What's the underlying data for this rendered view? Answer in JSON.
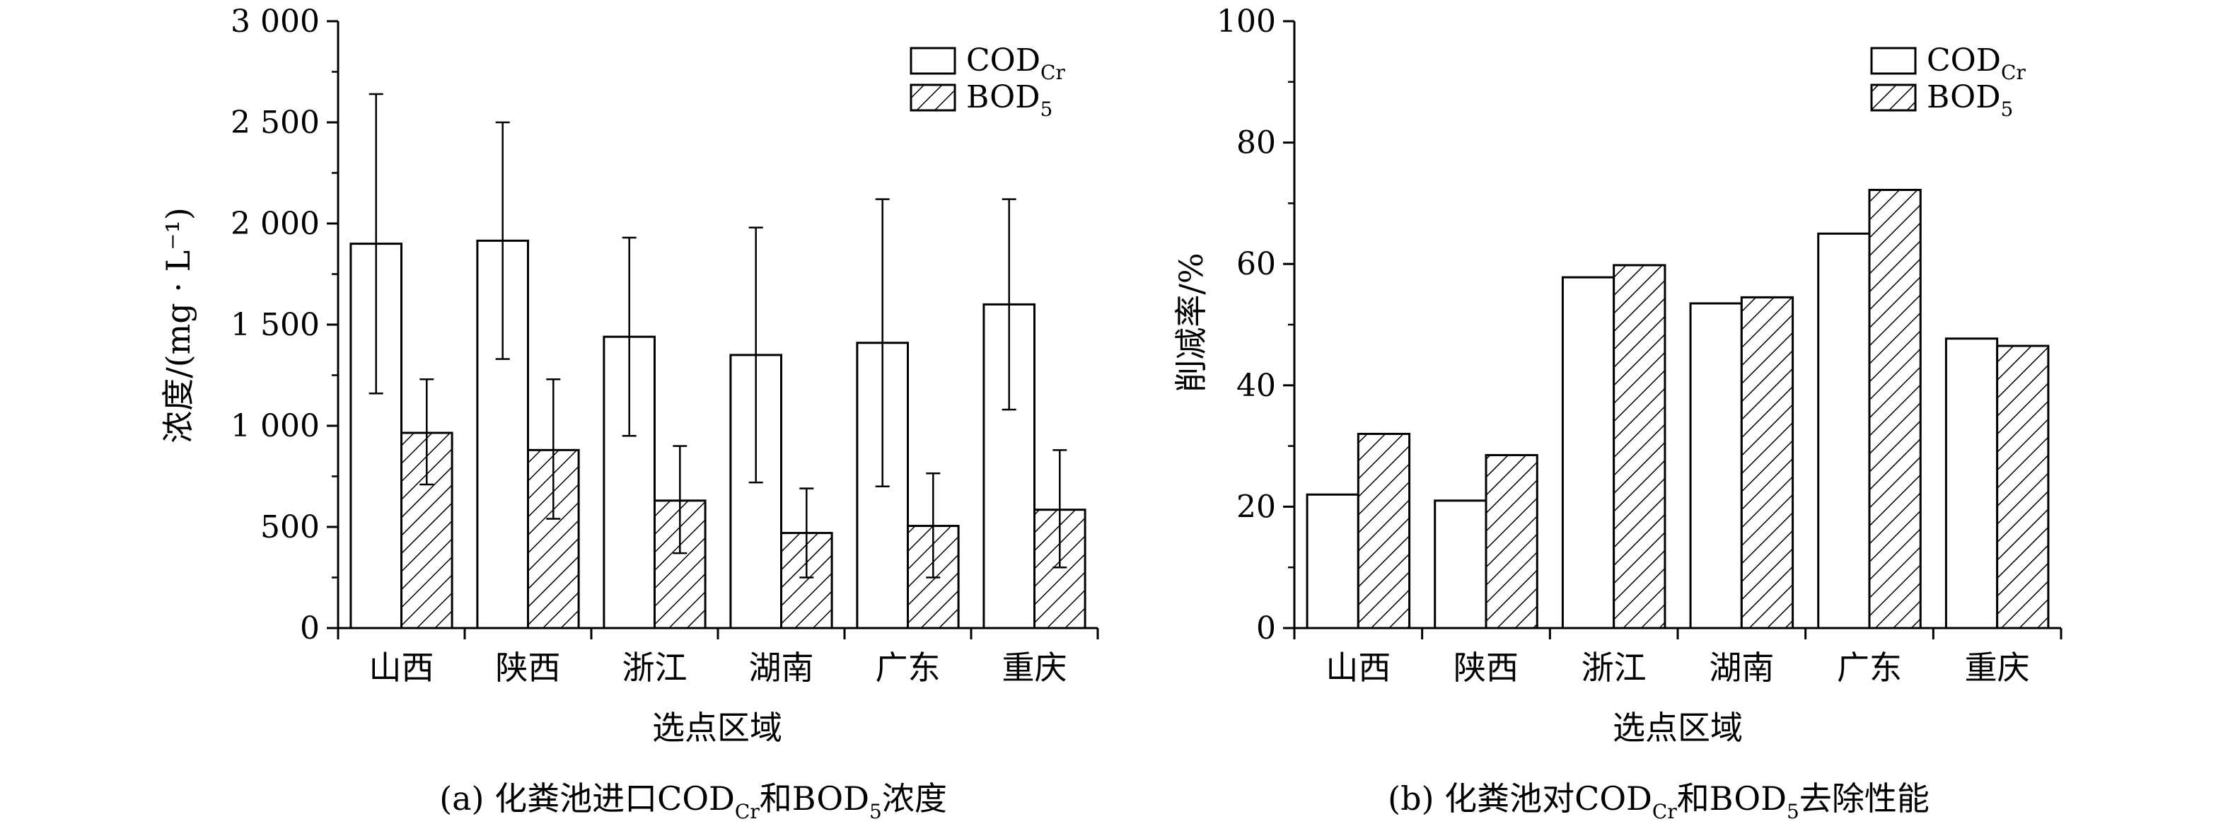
{
  "colors": {
    "ink": "#000000",
    "bar_fill_cod": "#ffffff",
    "hatch": "#000000"
  },
  "chart_data": [
    {
      "type": "bar",
      "panel": "a",
      "categories": [
        "山西",
        "陕西",
        "浙江",
        "湖南",
        "广东",
        "重庆"
      ],
      "xlabel": "选点区域",
      "ylabel": "浓度/(mg · L⁻¹)",
      "ylim": [
        0,
        3000
      ],
      "yticks": [
        0,
        500,
        1000,
        1500,
        2000,
        2500,
        3000
      ],
      "ytick_labels": [
        "0",
        "500",
        "1 000",
        "1 500",
        "2 000",
        "2 500",
        "3 000"
      ],
      "legend_position": "top-right",
      "series": [
        {
          "name": "COD",
          "name_sub": "Cr",
          "pattern": "solid",
          "values": [
            1900,
            1915,
            1440,
            1350,
            1410,
            1600
          ],
          "error": [
            [
              1160,
              2640
            ],
            [
              1330,
              2500
            ],
            [
              950,
              1930
            ],
            [
              720,
              1980
            ],
            [
              700,
              2120
            ],
            [
              1080,
              2120
            ]
          ]
        },
        {
          "name": "BOD",
          "name_sub": "5",
          "pattern": "hatch",
          "values": [
            965,
            880,
            630,
            470,
            505,
            585
          ],
          "error": [
            [
              710,
              1230
            ],
            [
              540,
              1230
            ],
            [
              370,
              900
            ],
            [
              250,
              690
            ],
            [
              250,
              765
            ],
            [
              300,
              880
            ]
          ]
        }
      ],
      "caption": {
        "prefix": "(a) 化粪池进口COD",
        "sub1": "Cr",
        "mid": "和BOD",
        "sub2": "5",
        "suffix": "浓度"
      }
    },
    {
      "type": "bar",
      "panel": "b",
      "categories": [
        "山西",
        "陕西",
        "浙江",
        "湖南",
        "广东",
        "重庆"
      ],
      "xlabel": "选点区域",
      "ylabel": "削减率/%",
      "ylim": [
        0,
        100
      ],
      "yticks": [
        0,
        20,
        40,
        60,
        80,
        100
      ],
      "ytick_labels": [
        "0",
        "20",
        "40",
        "60",
        "80",
        "100"
      ],
      "legend_position": "top-right",
      "series": [
        {
          "name": "COD",
          "name_sub": "Cr",
          "pattern": "solid",
          "values": [
            22,
            21,
            57.8,
            53.5,
            65,
            47.7
          ]
        },
        {
          "name": "BOD",
          "name_sub": "5",
          "pattern": "hatch",
          "values": [
            32,
            28.5,
            59.8,
            54.5,
            72.2,
            46.5
          ]
        }
      ],
      "caption": {
        "prefix": "(b) 化粪池对COD",
        "sub1": "Cr",
        "mid": "和BOD",
        "sub2": "5",
        "suffix": "去除性能"
      }
    }
  ]
}
